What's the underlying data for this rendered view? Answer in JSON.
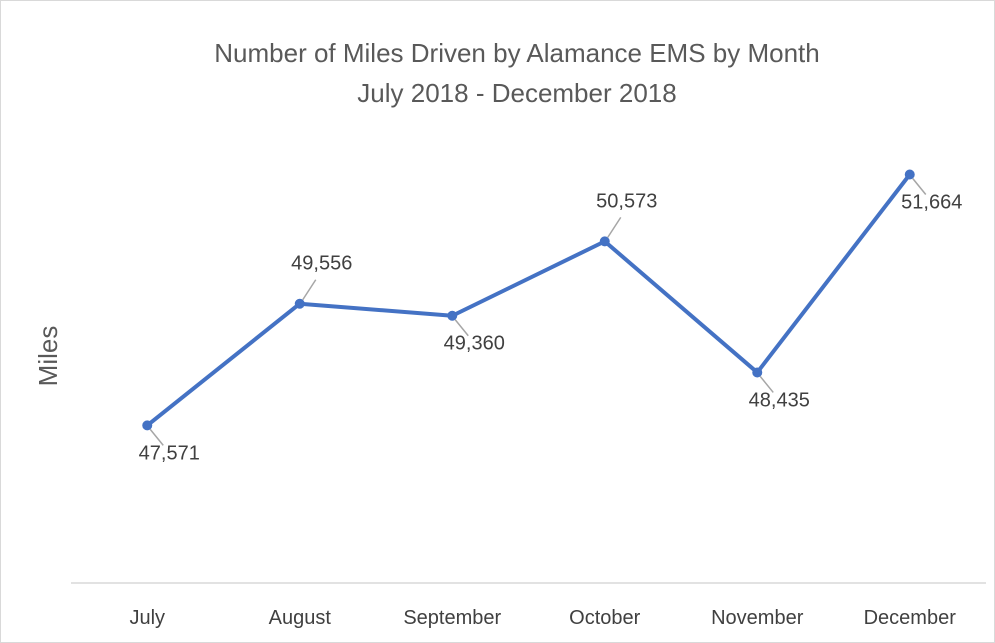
{
  "chart_data": {
    "type": "line",
    "title": "Number of Miles Driven by Alamance EMS by Month",
    "subtitle": "July 2018 - December 2018",
    "xlabel": "",
    "ylabel": "Miles",
    "categories": [
      "July",
      "August",
      "September",
      "October",
      "November",
      "December"
    ],
    "series": [
      {
        "values": [
          47571,
          49556,
          49360,
          50573,
          48435,
          51664
        ],
        "labels": [
          "47,571",
          "49,556",
          "49,360",
          "50,573",
          "48,435",
          "51,664"
        ],
        "label_positions": [
          "below",
          "above",
          "below",
          "above",
          "below",
          "below"
        ]
      }
    ],
    "ylim": [
      45000,
      52700
    ],
    "grid": false,
    "legend": "none",
    "colors": {
      "line": "#4472c4",
      "leader": "#a6a6a6",
      "axis": "#d9d9d9"
    }
  }
}
